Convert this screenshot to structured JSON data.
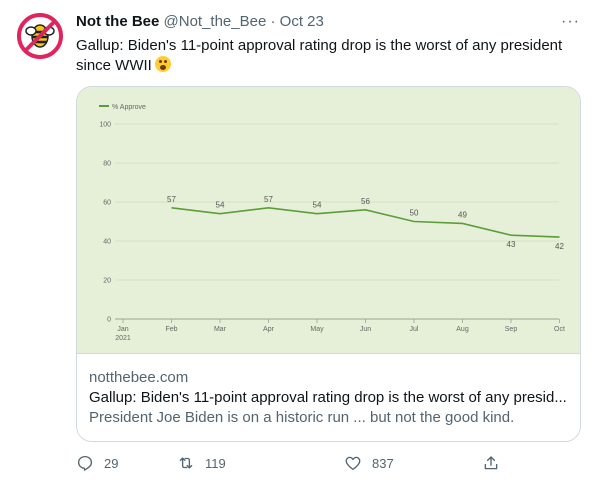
{
  "tweet": {
    "author_name": "Not the Bee",
    "handle": "@Not_the_Bee",
    "separator": "·",
    "date": "Oct 23",
    "more_label": "···",
    "text": "Gallup: Biden's 11-point approval rating drop is the worst of any president since WWII"
  },
  "card": {
    "domain": "notthebee.com",
    "title": "Gallup: Biden's 11-point approval rating drop is the worst of any presid...",
    "description": "President Joe Biden is on a historic run ... but not the good kind."
  },
  "actions": {
    "replies": "29",
    "retweets": "119",
    "likes": "837"
  },
  "colors": {
    "chart_bg": "#e6f0d8",
    "line": "#5a9e3a",
    "text_secondary": "#536471"
  },
  "chart_data": {
    "type": "line",
    "legend": "% Approve",
    "legend_position": "top-left",
    "x": [
      "Jan 2021",
      "Feb",
      "Mar",
      "Apr",
      "May",
      "Jun",
      "Jul",
      "Aug",
      "Sep",
      "Oct"
    ],
    "x_tick_labels": [
      "Jan",
      "Feb",
      "Mar",
      "Apr",
      "May",
      "Jun",
      "Jul",
      "Aug",
      "Sep",
      "Oct"
    ],
    "x_sub_label": "2021",
    "series": [
      {
        "name": "% Approve",
        "points": [
          {
            "x": "Feb",
            "y": 57
          },
          {
            "x": "Mar",
            "y": 54
          },
          {
            "x": "Apr",
            "y": 57
          },
          {
            "x": "May",
            "y": 54
          },
          {
            "x": "Jun",
            "y": 56
          },
          {
            "x": "Jul",
            "y": 50
          },
          {
            "x": "Aug",
            "y": 49
          },
          {
            "x": "Sep",
            "y": 43
          },
          {
            "x": "Oct",
            "y": 42
          }
        ]
      }
    ],
    "y_ticks": [
      0,
      20,
      40,
      60,
      80,
      100
    ],
    "ylim": [
      0,
      100
    ],
    "grid": true
  }
}
